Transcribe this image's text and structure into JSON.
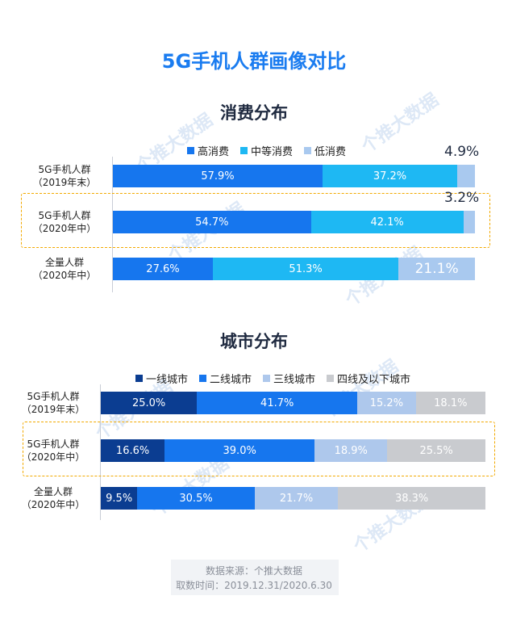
{
  "title": "5G手机人群画像对比",
  "colors": {
    "consumption": [
      "#1676ee",
      "#1eb8f3",
      "#a9c9ef"
    ],
    "city": [
      "#0b3d91",
      "#1676ee",
      "#aec8ec",
      "#c9cbcf"
    ]
  },
  "chart_data": [
    {
      "type": "bar",
      "orientation": "horizontal",
      "stacked": true,
      "title": "消费分布",
      "legend_position": "top",
      "categories": [
        "5G手机人群\n（2019年末）",
        "5G手机人群\n（2020年中）",
        "全量人群\n（2020年中）"
      ],
      "series": [
        {
          "name": "高消费",
          "values": [
            57.9,
            54.7,
            27.6
          ]
        },
        {
          "name": "中等消费",
          "values": [
            37.2,
            42.1,
            51.3
          ]
        },
        {
          "name": "低消费",
          "values": [
            4.9,
            3.2,
            21.1
          ]
        }
      ],
      "labels": [
        [
          "57.9%",
          "37.2%",
          "4.9%"
        ],
        [
          "54.7%",
          "42.1%",
          "3.2%"
        ],
        [
          "27.6%",
          "51.3%",
          "21.1%"
        ]
      ],
      "highlighted_category": 1
    },
    {
      "type": "bar",
      "orientation": "horizontal",
      "stacked": true,
      "title": "城市分布",
      "legend_position": "top",
      "categories": [
        "5G手机人群\n（2019年末）",
        "5G手机人群\n（2020年中）",
        "全量人群\n（2020年中）"
      ],
      "series": [
        {
          "name": "一线城市",
          "values": [
            25.0,
            16.6,
            9.5
          ]
        },
        {
          "name": "二线城市",
          "values": [
            41.7,
            39.0,
            30.5
          ]
        },
        {
          "name": "三线城市",
          "values": [
            15.2,
            18.9,
            21.7
          ]
        },
        {
          "name": "四线及以下城市",
          "values": [
            18.1,
            25.5,
            38.3
          ]
        }
      ],
      "labels": [
        [
          "25.0%",
          "41.7%",
          "15.2%",
          "18.1%"
        ],
        [
          "16.6%",
          "39.0%",
          "18.9%",
          "25.5%"
        ],
        [
          "9.5%",
          "30.5%",
          "21.7%",
          "38.3%"
        ]
      ],
      "highlighted_category": 1
    }
  ],
  "footer": {
    "source": "数据来源：个推大数据",
    "period": "取数时间：2019.12.31/2020.6.30"
  },
  "watermark": "个推大数据"
}
